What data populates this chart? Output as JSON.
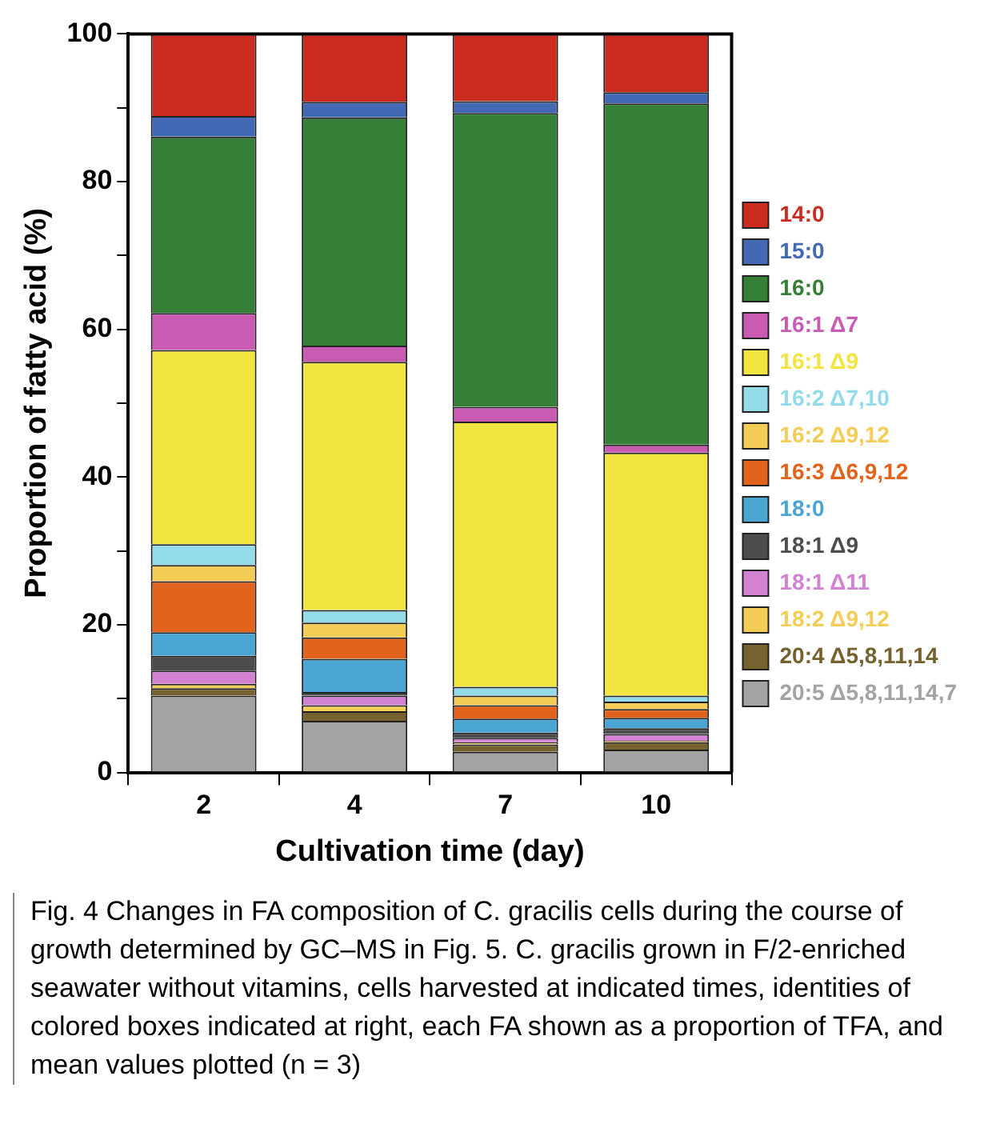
{
  "chart_data": {
    "type": "bar",
    "stacked": true,
    "xlabel": "Cultivation time (day)",
    "ylabel": "Proportion of fatty acid (%)",
    "categories": [
      "2",
      "4",
      "7",
      "10"
    ],
    "ylim": [
      0,
      100
    ],
    "yticks": [
      0,
      {
        "value": 10,
        "label": null
      },
      20,
      {
        "value": 30,
        "label": null
      },
      40,
      {
        "value": 50,
        "label": null
      },
      60,
      {
        "value": 70,
        "label": null
      },
      80,
      {
        "value": 90,
        "label": null
      },
      100
    ],
    "grid": false,
    "legend": "right",
    "series": [
      {
        "name": "20:5 Δ5,8,11,14,7",
        "color": "#a3a3a3",
        "values": [
          10.4,
          7.0,
          2.8,
          3.1
        ]
      },
      {
        "name": "20:4 Δ5,8,11,14",
        "color": "#76622e",
        "values": [
          1.0,
          1.3,
          1.0,
          1.0
        ]
      },
      {
        "name": "18:2 Δ9,12",
        "color": "#f3cd56",
        "values": [
          0.6,
          0.8,
          0.3,
          0.2
        ]
      },
      {
        "name": "18:1 Δ11",
        "color": "#d381d3",
        "values": [
          1.8,
          1.3,
          0.6,
          0.9
        ]
      },
      {
        "name": "18:1 Δ9",
        "color": "#4d4d4d",
        "values": [
          2.0,
          0.5,
          0.7,
          0.8
        ]
      },
      {
        "name": "18:0",
        "color": "#4ba5d3",
        "values": [
          3.2,
          4.5,
          1.9,
          1.4
        ]
      },
      {
        "name": "16:3 Δ6,9,12",
        "color": "#e2631c",
        "values": [
          6.9,
          2.9,
          1.8,
          1.2
        ]
      },
      {
        "name": "16:2 Δ9,12",
        "color": "#f3cd56",
        "values": [
          2.2,
          2.0,
          1.3,
          1.0
        ]
      },
      {
        "name": "16:2 Δ7,10",
        "color": "#93dbe8",
        "values": [
          2.8,
          1.7,
          1.2,
          0.8
        ]
      },
      {
        "name": "16:1 Δ9",
        "color": "#f2e53f",
        "values": [
          26.3,
          33.6,
          35.9,
          32.9
        ]
      },
      {
        "name": "16:1 Δ7",
        "color": "#c95bb3",
        "values": [
          5.0,
          2.2,
          2.0,
          1.1
        ]
      },
      {
        "name": "16:0",
        "color": "#357f37",
        "values": [
          23.9,
          30.9,
          39.8,
          46.2
        ]
      },
      {
        "name": "15:0",
        "color": "#4469b4",
        "values": [
          2.8,
          2.1,
          1.6,
          1.5
        ]
      },
      {
        "name": "14:0",
        "color": "#cc2b1f",
        "values": [
          11.1,
          9.2,
          9.1,
          7.9
        ]
      }
    ],
    "annotations": [
      "Fig. 4 Changes in FA composition of C. gracilis cells during the course of growth determined by GC–MS in Fig. 5. C. gracilis grown in F/2-enriched seawater without vitamins, cells harvested at indicated times, identities of colored boxes indicated at right, each FA shown as a proportion of TFA, and mean values plotted (n = 3)"
    ]
  }
}
